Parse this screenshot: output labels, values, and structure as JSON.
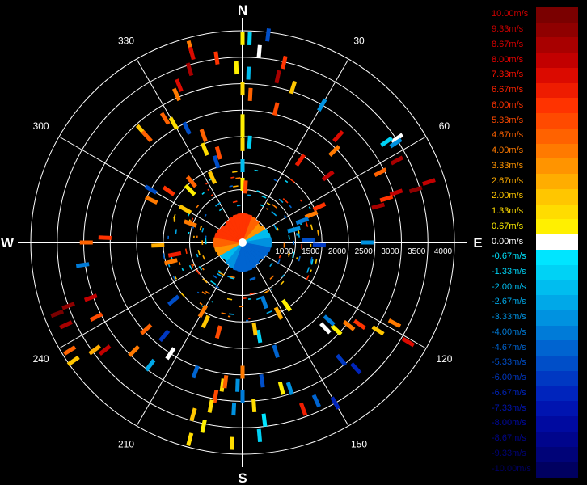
{
  "chart_data": {
    "type": "polar-radar",
    "compass": {
      "north": "N",
      "east": "E",
      "south": "S",
      "west": "W"
    },
    "angle_ticks": [
      "30",
      "60",
      "120",
      "150",
      "210",
      "240",
      "300",
      "330"
    ],
    "range_ticks": [
      "1000",
      "1500",
      "2000",
      "2500",
      "3000",
      "3500",
      "4000"
    ],
    "range_unit": "m",
    "range_max": 4000,
    "background": "#000000",
    "grid_color": "#ffffff",
    "legend": [
      {
        "label": "10.00m/s",
        "color": "#7a0000",
        "text_color": "#cc0000"
      },
      {
        "label": "9.33m/s",
        "color": "#8f0000",
        "text_color": "#cc0000"
      },
      {
        "label": "8.67m/s",
        "color": "#a80000",
        "text_color": "#dd0000"
      },
      {
        "label": "8.00m/s",
        "color": "#c20000",
        "text_color": "#ee0000"
      },
      {
        "label": "7.33m/s",
        "color": "#db0a00",
        "text_color": "#ff1100"
      },
      {
        "label": "6.67m/s",
        "color": "#ee1c00",
        "text_color": "#ff2200"
      },
      {
        "label": "6.00m/s",
        "color": "#ff3300",
        "text_color": "#ff3300"
      },
      {
        "label": "5.33m/s",
        "color": "#ff4a00",
        "text_color": "#ff4a00"
      },
      {
        "label": "4.67m/s",
        "color": "#ff6200",
        "text_color": "#ff6200"
      },
      {
        "label": "4.00m/s",
        "color": "#ff7a00",
        "text_color": "#ff7a00"
      },
      {
        "label": "3.33m/s",
        "color": "#ff9400",
        "text_color": "#ff9400"
      },
      {
        "label": "2.67m/s",
        "color": "#ffad00",
        "text_color": "#ffad00"
      },
      {
        "label": "2.00m/s",
        "color": "#ffc600",
        "text_color": "#ffc600"
      },
      {
        "label": "1.33m/s",
        "color": "#ffdc00",
        "text_color": "#ffdc00"
      },
      {
        "label": "0.67m/s",
        "color": "#fff000",
        "text_color": "#fff000"
      },
      {
        "label": "0.00m/s",
        "color": "#ffffff",
        "text_color": "#ffffff"
      },
      {
        "label": "-0.67m/s",
        "color": "#00e5ff",
        "text_color": "#00e5ff"
      },
      {
        "label": "-1.33m/s",
        "color": "#00d2f5",
        "text_color": "#00d2f5"
      },
      {
        "label": "-2.00m/s",
        "color": "#00bdef",
        "text_color": "#00bdef"
      },
      {
        "label": "-2.67m/s",
        "color": "#00a8e8",
        "text_color": "#00a8e8"
      },
      {
        "label": "-3.33m/s",
        "color": "#0092e0",
        "text_color": "#0092e0"
      },
      {
        "label": "-4.00m/s",
        "color": "#007bd8",
        "text_color": "#007bd8"
      },
      {
        "label": "-4.67m/s",
        "color": "#0064d0",
        "text_color": "#0064d0"
      },
      {
        "label": "-5.33m/s",
        "color": "#004ec8",
        "text_color": "#004ec8"
      },
      {
        "label": "-6.00m/s",
        "color": "#0038c2",
        "text_color": "#0038c2"
      },
      {
        "label": "-6.67m/s",
        "color": "#0024bc",
        "text_color": "#0024bc"
      },
      {
        "label": "-7.33m/s",
        "color": "#0014b0",
        "text_color": "#0014b0"
      },
      {
        "label": "-8.00m/s",
        "color": "#000aa0",
        "text_color": "#000aa0"
      },
      {
        "label": "-8.67m/s",
        "color": "#00058c",
        "text_color": "#00058c"
      },
      {
        "label": "-9.33m/s",
        "color": "#000378",
        "text_color": "#000378"
      },
      {
        "label": "-10.00m/s",
        "color": "#000060",
        "text_color": "#000060"
      }
    ],
    "returns": [
      {
        "az": 0,
        "r": 3850,
        "v": 0.67
      },
      {
        "az": 2,
        "r": 3850,
        "v": -1.33
      },
      {
        "az": 5,
        "r": 3620,
        "v": 0.0
      },
      {
        "az": 7,
        "r": 3950,
        "v": -5.33
      },
      {
        "az": 358,
        "r": 3300,
        "v": 0.67
      },
      {
        "az": 2,
        "r": 3200,
        "v": -2.0
      },
      {
        "az": 0,
        "r": 2900,
        "v": 1.33
      },
      {
        "az": 3,
        "r": 2800,
        "v": 4.67
      },
      {
        "az": 0,
        "r": 2300,
        "v": 0.67
      },
      {
        "az": 0,
        "r": 2100,
        "v": 0.67
      },
      {
        "az": 0,
        "r": 1850,
        "v": 1.33
      },
      {
        "az": 4,
        "r": 1900,
        "v": -1.33
      },
      {
        "az": 0,
        "r": 1450,
        "v": -2.0
      },
      {
        "az": 0,
        "r": 1100,
        "v": 0.67
      },
      {
        "az": 3,
        "r": 1050,
        "v": 5.33
      },
      {
        "az": 352,
        "r": 3520,
        "v": 6.0
      },
      {
        "az": 345,
        "r": 3820,
        "v": 4.0
      },
      {
        "az": 345,
        "r": 3700,
        "v": 7.33
      },
      {
        "az": 343,
        "r": 3420,
        "v": 8.67
      },
      {
        "az": 338,
        "r": 3200,
        "v": 7.33
      },
      {
        "az": 336,
        "r": 3060,
        "v": 4.0
      },
      {
        "az": 330,
        "r": 2600,
        "v": 1.33
      },
      {
        "az": 328,
        "r": 2760,
        "v": 4.67
      },
      {
        "az": 334,
        "r": 2400,
        "v": -5.33
      },
      {
        "az": 318,
        "r": 2850,
        "v": 2.0
      },
      {
        "az": 318,
        "r": 2700,
        "v": 4.67
      },
      {
        "az": 340,
        "r": 2150,
        "v": 4.67
      },
      {
        "az": 338,
        "r": 1900,
        "v": 1.33
      },
      {
        "az": 345,
        "r": 1750,
        "v": 5.33
      },
      {
        "az": 342,
        "r": 1600,
        "v": -5.33
      },
      {
        "az": 335,
        "r": 1350,
        "v": 2.0
      },
      {
        "az": 315,
        "r": 1400,
        "v": 0.67
      },
      {
        "az": 320,
        "r": 1500,
        "v": 4.67
      },
      {
        "az": 300,
        "r": 1250,
        "v": 2.0
      },
      {
        "az": 290,
        "r": 1050,
        "v": 4.0
      },
      {
        "az": 13,
        "r": 3490,
        "v": 6.0
      },
      {
        "az": 12,
        "r": 3200,
        "v": 8.67
      },
      {
        "az": 18,
        "r": 3080,
        "v": 2.0
      },
      {
        "az": 30,
        "r": 3000,
        "v": -3.33
      },
      {
        "az": 14,
        "r": 2600,
        "v": 5.33
      },
      {
        "az": 42,
        "r": 2700,
        "v": 7.33
      },
      {
        "az": 45,
        "r": 2450,
        "v": 4.0
      },
      {
        "az": 35,
        "r": 1900,
        "v": 6.67
      },
      {
        "az": 52,
        "r": 2050,
        "v": 8.0
      },
      {
        "az": 56,
        "r": 3520,
        "v": 0.0
      },
      {
        "az": 57,
        "r": 3450,
        "v": -3.33
      },
      {
        "az": 55,
        "r": 3320,
        "v": -1.33
      },
      {
        "az": 62,
        "r": 3300,
        "v": 8.67
      },
      {
        "az": 63,
        "r": 2920,
        "v": 4.67
      },
      {
        "az": 73,
        "r": 3420,
        "v": 9.33
      },
      {
        "az": 72,
        "r": 3700,
        "v": 8.0
      },
      {
        "az": 72,
        "r": 3050,
        "v": 8.0
      },
      {
        "az": 73,
        "r": 2840,
        "v": 6.0
      },
      {
        "az": 75,
        "r": 2650,
        "v": 8.67
      },
      {
        "az": 65,
        "r": 1600,
        "v": 6.0
      },
      {
        "az": 68,
        "r": 1400,
        "v": 4.0
      },
      {
        "az": 70,
        "r": 1200,
        "v": -4.0
      },
      {
        "az": 76,
        "r": 1000,
        "v": -3.33
      },
      {
        "az": 90,
        "r": 2350,
        "v": -3.33
      },
      {
        "az": 88,
        "r": 1250,
        "v": -5.33
      },
      {
        "az": 92,
        "r": 1450,
        "v": -6.0
      },
      {
        "az": 121,
        "r": 3650,
        "v": 7.33
      },
      {
        "az": 118,
        "r": 3250,
        "v": 4.0
      },
      {
        "az": 123,
        "r": 3050,
        "v": 2.0
      },
      {
        "az": 125,
        "r": 2700,
        "v": 6.0
      },
      {
        "az": 128,
        "r": 2550,
        "v": 4.0
      },
      {
        "az": 133,
        "r": 2420,
        "v": 0.67
      },
      {
        "az": 136,
        "r": 2250,
        "v": 0.0
      },
      {
        "az": 132,
        "r": 2200,
        "v": -4.0
      },
      {
        "az": 140,
        "r": 2900,
        "v": -6.0
      },
      {
        "az": 138,
        "r": 3200,
        "v": -6.67
      },
      {
        "az": 150,
        "r": 3500,
        "v": -6.67
      },
      {
        "az": 155,
        "r": 3300,
        "v": -4.67
      },
      {
        "az": 160,
        "r": 3350,
        "v": 6.67
      },
      {
        "az": 162,
        "r": 2900,
        "v": -3.33
      },
      {
        "az": 165,
        "r": 2850,
        "v": 0.67
      },
      {
        "az": 172,
        "r": 2640,
        "v": -5.33
      },
      {
        "az": 176,
        "r": 3090,
        "v": 1.33
      },
      {
        "az": 175,
        "r": 3660,
        "v": -1.33
      },
      {
        "az": 173,
        "r": 3380,
        "v": -0.67
      },
      {
        "az": 163,
        "r": 2150,
        "v": -4.67
      },
      {
        "az": 170,
        "r": 1800,
        "v": -1.33
      },
      {
        "az": 172,
        "r": 1650,
        "v": 2.0
      },
      {
        "az": 153,
        "r": 1500,
        "v": 2.67
      },
      {
        "az": 145,
        "r": 1450,
        "v": 0.67
      },
      {
        "az": 160,
        "r": 1200,
        "v": -4.0
      },
      {
        "az": 180,
        "r": 2450,
        "v": 4.0
      },
      {
        "az": 180,
        "r": 2900,
        "v": -4.0
      },
      {
        "az": 183,
        "r": 3800,
        "v": 1.33
      },
      {
        "az": 182,
        "r": 2700,
        "v": -3.33
      },
      {
        "az": 190,
        "r": 2950,
        "v": 5.33
      },
      {
        "az": 188,
        "r": 2720,
        "v": 1.33
      },
      {
        "az": 187,
        "r": 2650,
        "v": 4.67
      },
      {
        "az": 191,
        "r": 3150,
        "v": 1.33
      },
      {
        "az": 196,
        "r": 3380,
        "v": 2.0
      },
      {
        "az": 195,
        "r": 3850,
        "v": 1.33
      },
      {
        "az": 192,
        "r": 3550,
        "v": 0.67
      },
      {
        "az": 183,
        "r": 3150,
        "v": -3.33
      },
      {
        "az": 200,
        "r": 2600,
        "v": -4.67
      },
      {
        "az": 213,
        "r": 2500,
        "v": 0.0
      },
      {
        "az": 217,
        "r": 2900,
        "v": -2.67
      },
      {
        "az": 220,
        "r": 2300,
        "v": -6.0
      },
      {
        "az": 225,
        "r": 2900,
        "v": 4.0
      },
      {
        "az": 228,
        "r": 2450,
        "v": 4.67
      },
      {
        "az": 232,
        "r": 3300,
        "v": 8.0
      },
      {
        "az": 234,
        "r": 3450,
        "v": 2.67
      },
      {
        "az": 238,
        "r": 3850,
        "v": 4.67
      },
      {
        "az": 235,
        "r": 3900,
        "v": 2.0
      },
      {
        "az": 245,
        "r": 3680,
        "v": 8.67
      },
      {
        "az": 250,
        "r": 3500,
        "v": 9.33
      },
      {
        "az": 249,
        "r": 3750,
        "v": 10.0
      },
      {
        "az": 243,
        "r": 3100,
        "v": 5.33
      },
      {
        "az": 250,
        "r": 3050,
        "v": 8.0
      },
      {
        "az": 195,
        "r": 1750,
        "v": 5.33
      },
      {
        "az": 205,
        "r": 1650,
        "v": 2.0
      },
      {
        "az": 210,
        "r": 1500,
        "v": 4.0
      },
      {
        "az": 230,
        "r": 1700,
        "v": -5.33
      },
      {
        "az": 255,
        "r": 1400,
        "v": 4.0
      },
      {
        "az": 260,
        "r": 1300,
        "v": 6.67
      },
      {
        "az": 262,
        "r": 3050,
        "v": -4.0
      },
      {
        "az": 270,
        "r": 2950,
        "v": 4.67
      },
      {
        "az": 272,
        "r": 2600,
        "v": 6.0
      },
      {
        "az": 268,
        "r": 1600,
        "v": 2.67
      },
      {
        "az": 295,
        "r": 1900,
        "v": 4.0
      },
      {
        "az": 300,
        "r": 2000,
        "v": -5.33
      },
      {
        "az": 305,
        "r": 1700,
        "v": 6.0
      }
    ]
  }
}
